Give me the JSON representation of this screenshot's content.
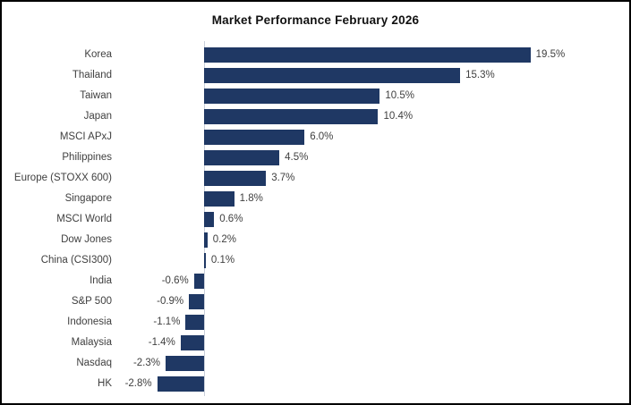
{
  "title": "Market Performance February 2026",
  "colors": {
    "bar": "#1F3864",
    "axis_line": "#C9CFDA",
    "label_text": "#3F3F3F",
    "title_text": "#111111",
    "border": "#000000",
    "background": "#FFFFFF"
  },
  "chart_data": {
    "type": "bar",
    "orientation": "horizontal",
    "title": "Market Performance February 2026",
    "xlabel": "",
    "ylabel": "",
    "unit": "%",
    "grid": false,
    "legend": false,
    "xlim": [
      -5,
      25
    ],
    "categories": [
      "Korea",
      "Thailand",
      "Taiwan",
      "Japan",
      "MSCI APxJ",
      "Philippines",
      "Europe (STOXX 600)",
      "Singapore",
      "MSCI World",
      "Dow Jones",
      "China (CSI300)",
      "India",
      "S&P 500",
      "Indonesia",
      "Malaysia",
      "Nasdaq",
      "HK"
    ],
    "values": [
      19.5,
      15.3,
      10.5,
      10.4,
      6.0,
      4.5,
      3.7,
      1.8,
      0.6,
      0.2,
      0.1,
      -0.6,
      -0.9,
      -1.1,
      -1.4,
      -2.3,
      -2.8
    ],
    "value_labels": [
      "19.5%",
      "15.3%",
      "10.5%",
      "10.4%",
      "6.0%",
      "4.5%",
      "3.7%",
      "1.8%",
      "0.6%",
      "0.2%",
      "0.1%",
      "-0.6%",
      "-0.9%",
      "-1.1%",
      "-1.4%",
      "-2.3%",
      "-2.8%"
    ]
  }
}
